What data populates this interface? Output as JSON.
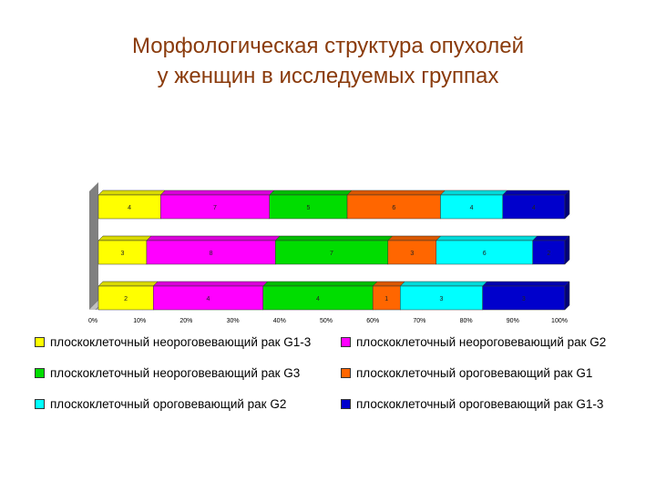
{
  "title": {
    "line1": "Морфологическая структура опухолей",
    "line2": "у женщин в исследуемых группах"
  },
  "chart_data": {
    "type": "bar",
    "stacked": "percent",
    "orientation": "horizontal",
    "title": "Морфологическая структура опухолей у женщин в исследуемых группах",
    "x_ticks": [
      "0%",
      "10%",
      "20%",
      "30%",
      "40%",
      "50%",
      "60%",
      "70%",
      "80%",
      "90%",
      "100%"
    ],
    "xlim": [
      0,
      100
    ],
    "legend_position": "bottom",
    "series": [
      {
        "name": "плоскоклеточный неороговевающий рак G1-3",
        "color": "#ffff00",
        "values": [
          4,
          3,
          2
        ]
      },
      {
        "name": "плоскоклеточный неороговевающий рак G2",
        "color": "#ff00ff",
        "values": [
          7,
          8,
          4
        ]
      },
      {
        "name": "плоскоклеточный неороговевающий рак G3",
        "color": "#00dd00",
        "values": [
          5,
          7,
          4
        ]
      },
      {
        "name": "плоскоклеточный ороговевающий рак G1",
        "color": "#ff6600",
        "values": [
          6,
          3,
          1
        ]
      },
      {
        "name": "плоскоклеточный ороговевающий рак G2",
        "color": "#00ffff",
        "values": [
          4,
          6,
          3
        ]
      },
      {
        "name": "плоскоклеточный ороговевающий рак G1-3",
        "color": "#0000cc",
        "values": [
          4,
          2,
          3
        ]
      }
    ]
  }
}
